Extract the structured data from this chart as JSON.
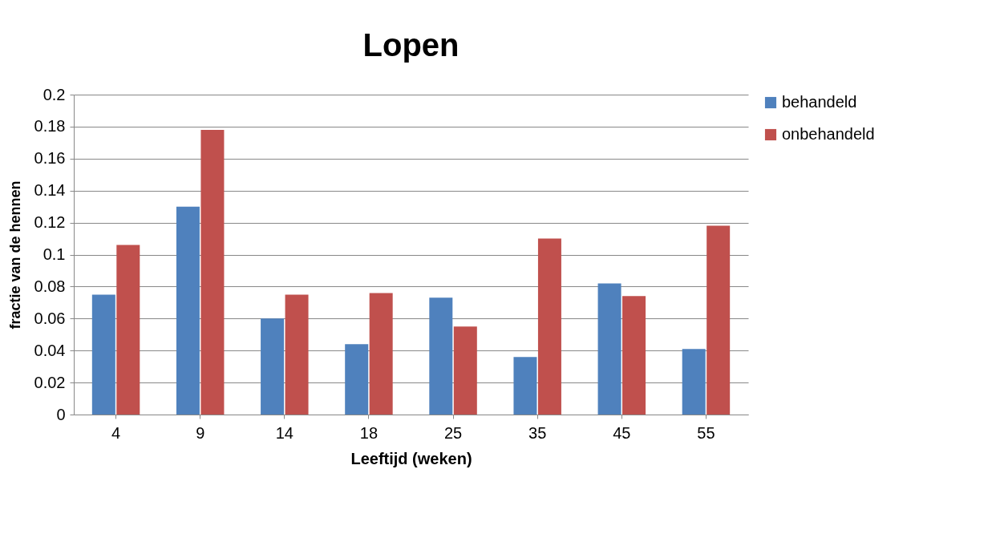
{
  "chart_data": {
    "type": "bar",
    "title": "Lopen",
    "xlabel": "Leeftijd (weken)",
    "ylabel": "fractie van de hennen",
    "categories": [
      "4",
      "9",
      "14",
      "18",
      "25",
      "35",
      "45",
      "55"
    ],
    "series": [
      {
        "name": "behandeld",
        "color": "#4f81bd",
        "values": [
          0.075,
          0.13,
          0.06,
          0.044,
          0.073,
          0.036,
          0.082,
          0.041
        ]
      },
      {
        "name": "onbehandeld",
        "color": "#c0504d",
        "values": [
          0.106,
          0.178,
          0.075,
          0.076,
          0.055,
          0.11,
          0.074,
          0.118
        ]
      }
    ],
    "ylim": [
      0,
      0.2
    ],
    "yticks": [
      0,
      0.02,
      0.04,
      0.06,
      0.08,
      0.1,
      0.12,
      0.14,
      0.16,
      0.18,
      0.2
    ],
    "grid": "y",
    "legend": "right"
  }
}
